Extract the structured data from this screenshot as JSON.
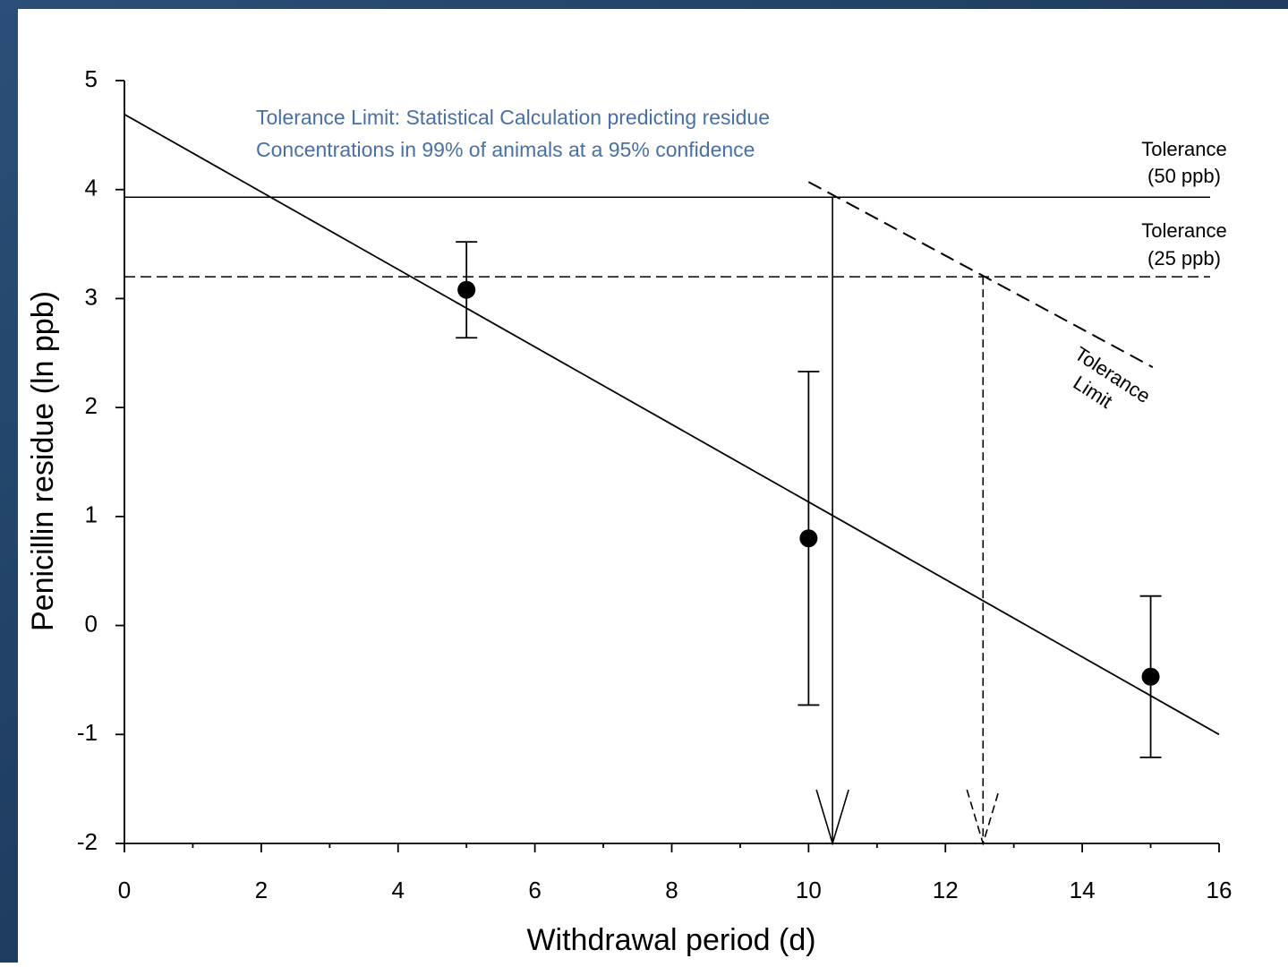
{
  "chart_data": {
    "type": "scatter",
    "x_label": "Withdrawal period (d)",
    "y_label": "Penicillin residue (ln ppb)",
    "x": [
      5,
      10,
      15
    ],
    "series": [
      {
        "color": "#000000",
        "values": [
          3.08,
          0.8,
          -0.47
        ],
        "errors": [
          0.44,
          1.53,
          0.74
        ]
      }
    ],
    "xlim": [
      0,
      16
    ],
    "ylim": [
      -2,
      5
    ],
    "xticks": [
      0,
      2,
      4,
      6,
      8,
      10,
      12,
      14,
      16
    ],
    "xminorticks": [
      1,
      3,
      5,
      7,
      9,
      11,
      13,
      15
    ],
    "yticks": [
      -2,
      -1,
      0,
      1,
      2,
      3,
      4,
      5
    ],
    "trend_line": {
      "x": [
        0,
        16
      ],
      "values": [
        4.69,
        -1.0
      ]
    },
    "hlines": [
      {
        "value": 3.93,
        "style": "solid",
        "label": [
          "Tolerance",
          "(50 ppb)"
        ]
      },
      {
        "value": 3.2,
        "style": "dashed",
        "label": [
          "Tolerance",
          "(25 ppb)"
        ]
      }
    ],
    "tolerance_limit": {
      "x": [
        10,
        15.03
      ],
      "values": [
        4.07,
        2.37
      ],
      "label": [
        "Tolerance",
        "Limit"
      ]
    },
    "arrows": [
      {
        "x": 10.35,
        "from": 3.93,
        "style": "solid"
      },
      {
        "x": 12.55,
        "from": 3.2,
        "style": "dashed"
      }
    ],
    "annotation": [
      "Tolerance Limit: Statistical Calculation predicting residue",
      "Concentrations in 99% of animals at a 95% confidence"
    ],
    "annotation_color": "#4a6fa5"
  }
}
